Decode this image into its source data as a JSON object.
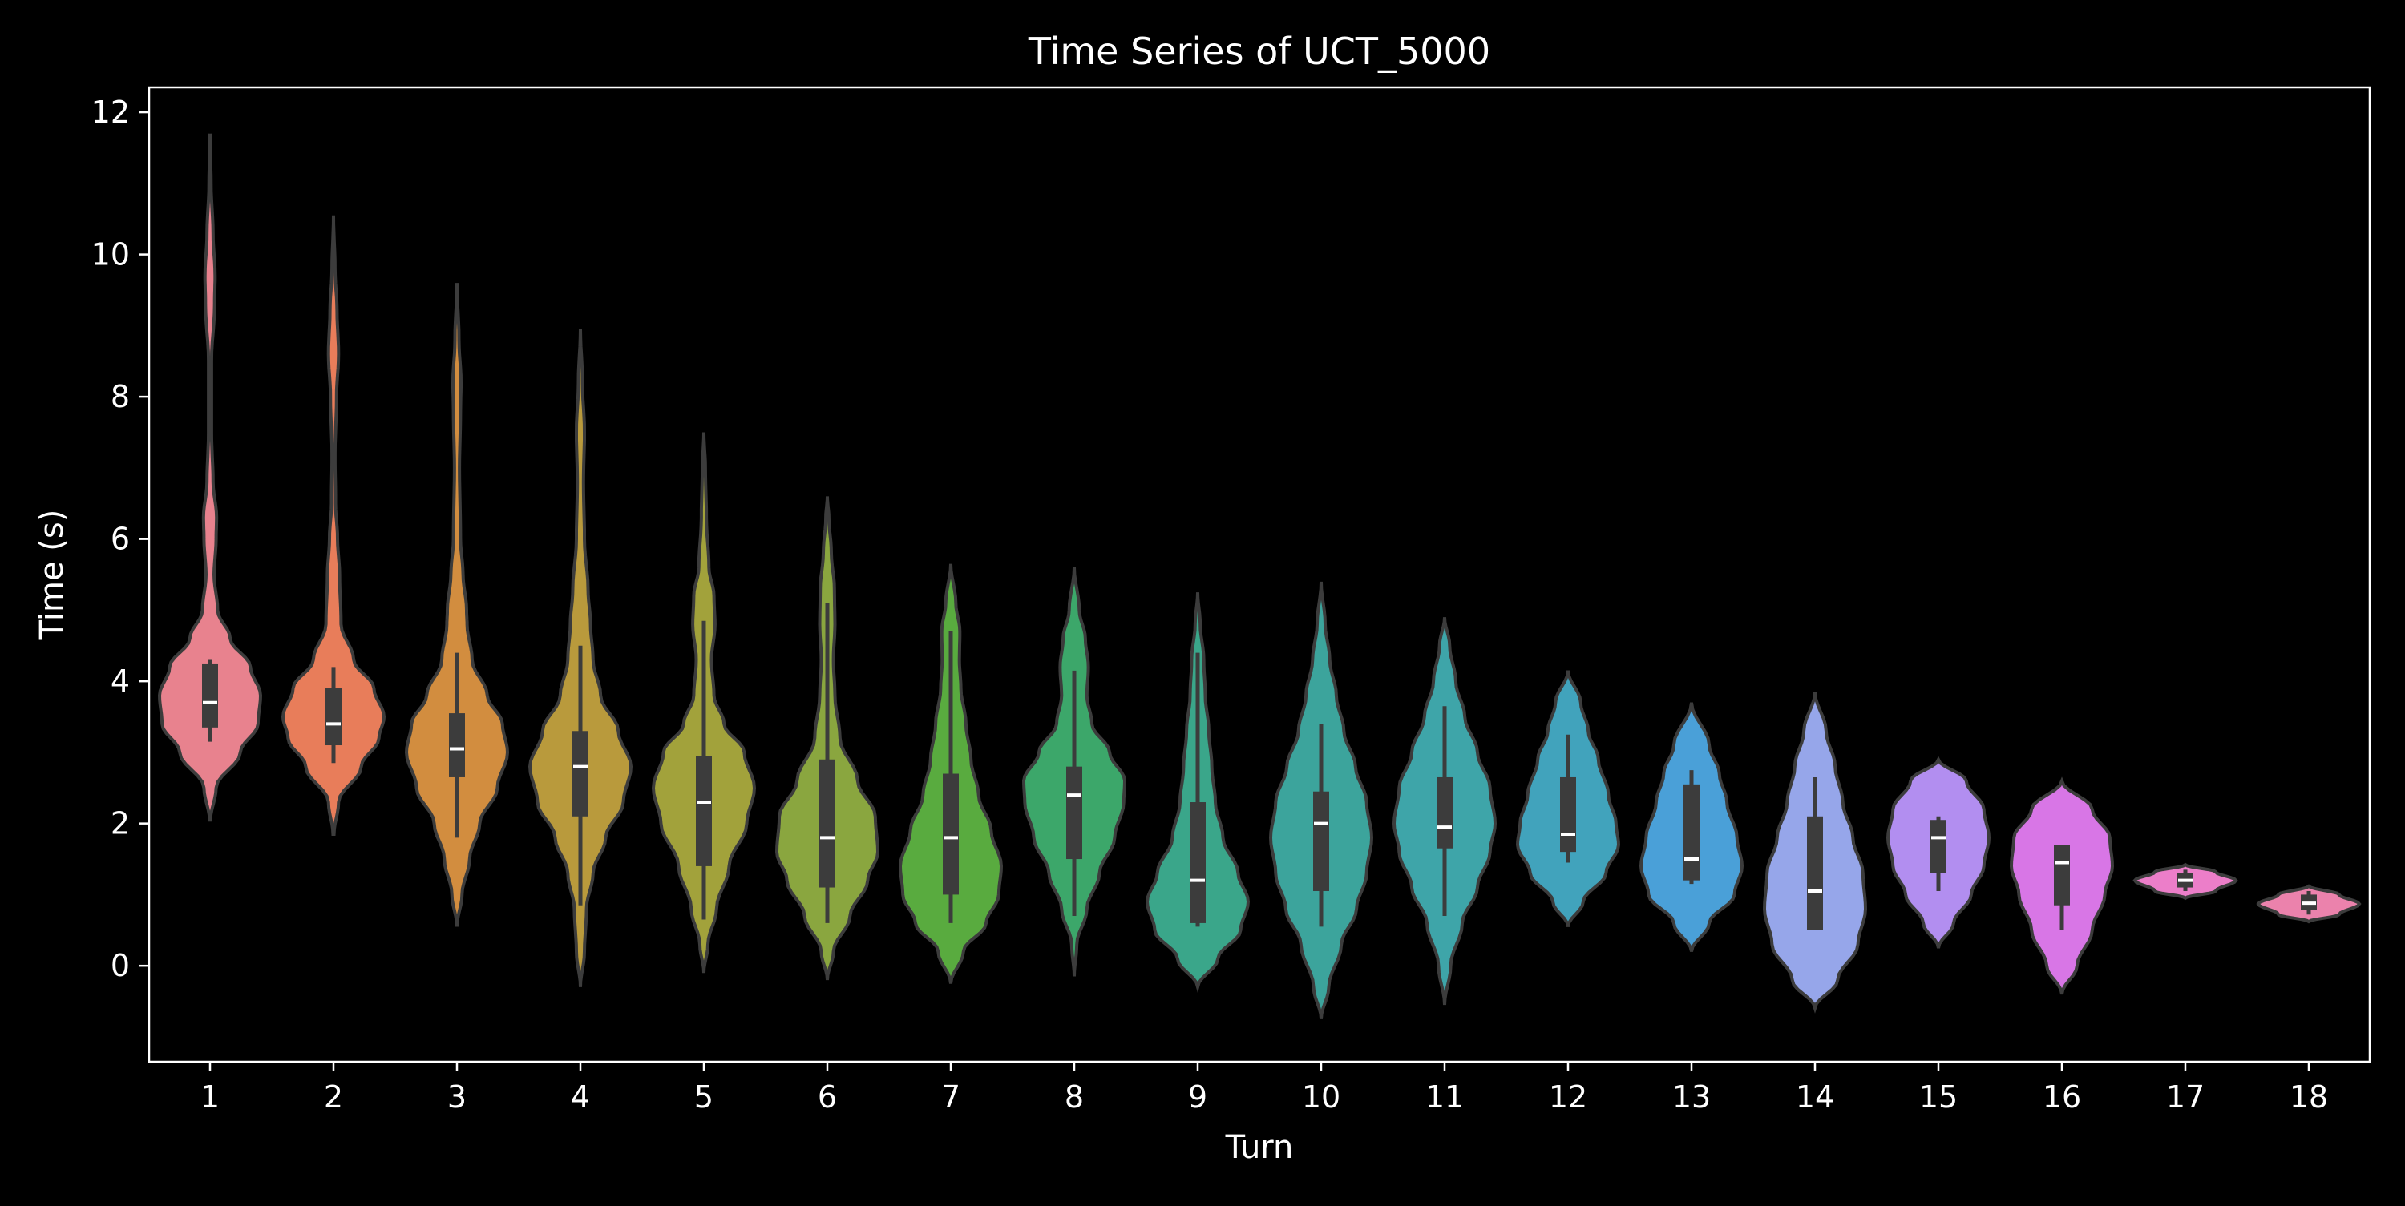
{
  "chart_data": {
    "type": "violin",
    "title": "Time Series of UCT_5000",
    "xlabel": "Turn",
    "ylabel": "Time (s)",
    "ylim": [
      -1.35,
      12.35
    ],
    "yticks": [
      0,
      2,
      4,
      6,
      8,
      10,
      12
    ],
    "grid": false,
    "legend": "none",
    "categories": [
      "1",
      "2",
      "3",
      "4",
      "5",
      "6",
      "7",
      "8",
      "9",
      "10",
      "11",
      "12",
      "13",
      "14",
      "15",
      "16",
      "17",
      "18"
    ],
    "colors": [
      "#e8828e",
      "#e87d5a",
      "#d28d3f",
      "#b99a3c",
      "#a2a23b",
      "#8aa63f",
      "#59ab3f",
      "#3ca76a",
      "#3aa68a",
      "#3ca49c",
      "#3ea5a9",
      "#41a3bc",
      "#4aa0d8",
      "#96a6ea",
      "#b28ef0",
      "#d876e6",
      "#ec7ec9",
      "#eb82ac"
    ],
    "violins": [
      {
        "min": 2.05,
        "max": 11.7,
        "q1": 3.35,
        "median": 3.7,
        "q3": 4.25,
        "wlo": 3.15,
        "whi": 4.3,
        "profile": [
          [
            2.05,
            0.01
          ],
          [
            2.5,
            0.12
          ],
          [
            3.0,
            0.6
          ],
          [
            3.4,
            0.95
          ],
          [
            3.8,
            1.0
          ],
          [
            4.2,
            0.8
          ],
          [
            4.6,
            0.4
          ],
          [
            5.0,
            0.15
          ],
          [
            5.5,
            0.08
          ],
          [
            6.0,
            0.12
          ],
          [
            6.3,
            0.13
          ],
          [
            6.8,
            0.06
          ],
          [
            7.5,
            0.03
          ],
          [
            8.5,
            0.03
          ],
          [
            9.3,
            0.09
          ],
          [
            9.7,
            0.1
          ],
          [
            10.3,
            0.06
          ],
          [
            11.0,
            0.02
          ],
          [
            11.7,
            0.0
          ]
        ]
      },
      {
        "min": 1.85,
        "max": 10.55,
        "q1": 3.1,
        "median": 3.4,
        "q3": 3.9,
        "wlo": 2.85,
        "whi": 4.2,
        "profile": [
          [
            1.85,
            0.01
          ],
          [
            2.3,
            0.1
          ],
          [
            2.8,
            0.55
          ],
          [
            3.2,
            0.9
          ],
          [
            3.5,
            1.0
          ],
          [
            3.9,
            0.8
          ],
          [
            4.3,
            0.4
          ],
          [
            4.8,
            0.15
          ],
          [
            5.5,
            0.12
          ],
          [
            6.0,
            0.08
          ],
          [
            6.5,
            0.04
          ],
          [
            7.2,
            0.03
          ],
          [
            8.0,
            0.06
          ],
          [
            8.6,
            0.1
          ],
          [
            9.2,
            0.07
          ],
          [
            9.8,
            0.03
          ],
          [
            10.55,
            0.0
          ]
        ]
      },
      {
        "min": 0.55,
        "max": 9.6,
        "q1": 2.65,
        "median": 3.05,
        "q3": 3.55,
        "wlo": 1.8,
        "whi": 4.4,
        "profile": [
          [
            0.55,
            0.0
          ],
          [
            1.0,
            0.1
          ],
          [
            1.5,
            0.25
          ],
          [
            2.0,
            0.45
          ],
          [
            2.5,
            0.8
          ],
          [
            3.0,
            1.0
          ],
          [
            3.4,
            0.9
          ],
          [
            3.8,
            0.6
          ],
          [
            4.3,
            0.3
          ],
          [
            4.8,
            0.2
          ],
          [
            5.0,
            0.19
          ],
          [
            5.5,
            0.12
          ],
          [
            6.0,
            0.07
          ],
          [
            7.0,
            0.05
          ],
          [
            7.8,
            0.07
          ],
          [
            8.2,
            0.08
          ],
          [
            8.8,
            0.04
          ],
          [
            9.6,
            0.0
          ]
        ]
      },
      {
        "min": -0.3,
        "max": 8.95,
        "q1": 2.1,
        "median": 2.8,
        "q3": 3.3,
        "wlo": 0.85,
        "whi": 4.5,
        "profile": [
          [
            -0.3,
            0.0
          ],
          [
            0.2,
            0.08
          ],
          [
            0.8,
            0.12
          ],
          [
            1.3,
            0.25
          ],
          [
            1.8,
            0.5
          ],
          [
            2.3,
            0.85
          ],
          [
            2.8,
            1.0
          ],
          [
            3.3,
            0.75
          ],
          [
            3.8,
            0.4
          ],
          [
            4.3,
            0.25
          ],
          [
            4.8,
            0.2
          ],
          [
            5.3,
            0.15
          ],
          [
            6.0,
            0.08
          ],
          [
            6.8,
            0.06
          ],
          [
            7.5,
            0.08
          ],
          [
            8.2,
            0.04
          ],
          [
            8.95,
            0.0
          ]
        ]
      },
      {
        "min": -0.1,
        "max": 7.5,
        "q1": 1.4,
        "median": 2.3,
        "q3": 2.95,
        "wlo": 0.65,
        "whi": 4.85,
        "profile": [
          [
            -0.1,
            0.0
          ],
          [
            0.3,
            0.08
          ],
          [
            0.8,
            0.25
          ],
          [
            1.4,
            0.5
          ],
          [
            2.0,
            0.85
          ],
          [
            2.5,
            1.0
          ],
          [
            3.0,
            0.8
          ],
          [
            3.4,
            0.4
          ],
          [
            3.8,
            0.2
          ],
          [
            4.3,
            0.15
          ],
          [
            4.8,
            0.22
          ],
          [
            5.2,
            0.2
          ],
          [
            5.6,
            0.1
          ],
          [
            6.3,
            0.05
          ],
          [
            7.0,
            0.03
          ],
          [
            7.5,
            0.0
          ]
        ]
      },
      {
        "min": -0.2,
        "max": 6.6,
        "q1": 1.1,
        "median": 1.8,
        "q3": 2.9,
        "wlo": 0.6,
        "whi": 5.1,
        "profile": [
          [
            -0.2,
            0.0
          ],
          [
            0.2,
            0.12
          ],
          [
            0.7,
            0.45
          ],
          [
            1.2,
            0.8
          ],
          [
            1.6,
            1.0
          ],
          [
            2.1,
            0.95
          ],
          [
            2.6,
            0.6
          ],
          [
            3.2,
            0.25
          ],
          [
            3.8,
            0.15
          ],
          [
            4.3,
            0.12
          ],
          [
            4.8,
            0.15
          ],
          [
            5.3,
            0.14
          ],
          [
            5.8,
            0.08
          ],
          [
            6.3,
            0.03
          ],
          [
            6.6,
            0.0
          ]
        ]
      },
      {
        "min": -0.25,
        "max": 5.65,
        "q1": 1.0,
        "median": 1.8,
        "q3": 2.7,
        "wlo": 0.6,
        "whi": 4.7,
        "profile": [
          [
            -0.25,
            0.0
          ],
          [
            0.2,
            0.25
          ],
          [
            0.6,
            0.7
          ],
          [
            1.0,
            0.95
          ],
          [
            1.4,
            1.0
          ],
          [
            1.9,
            0.8
          ],
          [
            2.4,
            0.55
          ],
          [
            2.9,
            0.4
          ],
          [
            3.4,
            0.3
          ],
          [
            3.9,
            0.2
          ],
          [
            4.3,
            0.17
          ],
          [
            4.7,
            0.18
          ],
          [
            5.1,
            0.1
          ],
          [
            5.65,
            0.0
          ]
        ]
      },
      {
        "min": -0.15,
        "max": 5.6,
        "q1": 1.5,
        "median": 2.4,
        "q3": 2.8,
        "wlo": 0.7,
        "whi": 4.15,
        "profile": [
          [
            -0.15,
            0.0
          ],
          [
            0.3,
            0.05
          ],
          [
            0.8,
            0.25
          ],
          [
            1.3,
            0.5
          ],
          [
            1.8,
            0.8
          ],
          [
            2.3,
            0.98
          ],
          [
            2.6,
            1.0
          ],
          [
            3.0,
            0.7
          ],
          [
            3.4,
            0.35
          ],
          [
            3.8,
            0.25
          ],
          [
            4.2,
            0.28
          ],
          [
            4.6,
            0.22
          ],
          [
            5.0,
            0.1
          ],
          [
            5.6,
            0.0
          ]
        ]
      },
      {
        "min": -0.3,
        "max": 5.25,
        "q1": 0.6,
        "median": 1.2,
        "q3": 2.3,
        "wlo": 0.55,
        "whi": 4.4,
        "profile": [
          [
            -0.3,
            0.0
          ],
          [
            0.1,
            0.4
          ],
          [
            0.5,
            0.85
          ],
          [
            0.9,
            1.0
          ],
          [
            1.3,
            0.8
          ],
          [
            1.8,
            0.5
          ],
          [
            2.3,
            0.35
          ],
          [
            2.8,
            0.28
          ],
          [
            3.3,
            0.22
          ],
          [
            3.8,
            0.15
          ],
          [
            4.3,
            0.12
          ],
          [
            4.8,
            0.05
          ],
          [
            5.25,
            0.0
          ]
        ]
      },
      {
        "min": -0.75,
        "max": 5.4,
        "q1": 1.05,
        "median": 2.0,
        "q3": 2.45,
        "wlo": 0.55,
        "whi": 3.4,
        "profile": [
          [
            -0.75,
            0.0
          ],
          [
            -0.3,
            0.15
          ],
          [
            0.3,
            0.4
          ],
          [
            0.8,
            0.7
          ],
          [
            1.3,
            0.9
          ],
          [
            1.8,
            1.0
          ],
          [
            2.3,
            0.9
          ],
          [
            2.8,
            0.68
          ],
          [
            3.3,
            0.45
          ],
          [
            3.8,
            0.3
          ],
          [
            4.3,
            0.17
          ],
          [
            4.8,
            0.08
          ],
          [
            5.4,
            0.0
          ]
        ]
      },
      {
        "min": -0.55,
        "max": 4.9,
        "q1": 1.65,
        "median": 1.95,
        "q3": 2.65,
        "wlo": 0.7,
        "whi": 3.65,
        "profile": [
          [
            -0.55,
            0.0
          ],
          [
            0.0,
            0.12
          ],
          [
            0.6,
            0.35
          ],
          [
            1.1,
            0.65
          ],
          [
            1.6,
            0.9
          ],
          [
            2.0,
            1.0
          ],
          [
            2.5,
            0.9
          ],
          [
            3.0,
            0.65
          ],
          [
            3.5,
            0.4
          ],
          [
            4.0,
            0.22
          ],
          [
            4.5,
            0.1
          ],
          [
            4.9,
            0.0
          ]
        ]
      },
      {
        "min": 0.55,
        "max": 4.15,
        "q1": 1.6,
        "median": 1.85,
        "q3": 2.65,
        "wlo": 1.45,
        "whi": 3.25,
        "profile": [
          [
            0.55,
            0.0
          ],
          [
            0.9,
            0.3
          ],
          [
            1.3,
            0.75
          ],
          [
            1.7,
            1.0
          ],
          [
            2.0,
            0.95
          ],
          [
            2.4,
            0.8
          ],
          [
            2.9,
            0.6
          ],
          [
            3.3,
            0.4
          ],
          [
            3.7,
            0.25
          ],
          [
            4.15,
            0.0
          ]
        ]
      },
      {
        "min": 0.2,
        "max": 3.7,
        "q1": 1.2,
        "median": 1.5,
        "q3": 2.55,
        "wlo": 1.15,
        "whi": 2.75,
        "profile": [
          [
            0.2,
            0.0
          ],
          [
            0.6,
            0.35
          ],
          [
            1.0,
            0.85
          ],
          [
            1.4,
            1.0
          ],
          [
            1.8,
            0.9
          ],
          [
            2.3,
            0.7
          ],
          [
            2.7,
            0.55
          ],
          [
            3.1,
            0.35
          ],
          [
            3.7,
            0.0
          ]
        ]
      },
      {
        "min": -0.6,
        "max": 3.85,
        "q1": 0.5,
        "median": 1.05,
        "q3": 2.1,
        "wlo": 0.5,
        "whi": 2.65,
        "profile": [
          [
            -0.6,
            0.0
          ],
          [
            -0.2,
            0.45
          ],
          [
            0.3,
            0.85
          ],
          [
            0.8,
            1.0
          ],
          [
            1.3,
            0.95
          ],
          [
            1.8,
            0.75
          ],
          [
            2.3,
            0.55
          ],
          [
            2.8,
            0.4
          ],
          [
            3.3,
            0.22
          ],
          [
            3.85,
            0.0
          ]
        ]
      },
      {
        "min": 0.25,
        "max": 2.9,
        "q1": 1.3,
        "median": 1.8,
        "q3": 2.05,
        "wlo": 1.05,
        "whi": 2.1,
        "profile": [
          [
            0.25,
            0.0
          ],
          [
            0.6,
            0.3
          ],
          [
            1.0,
            0.65
          ],
          [
            1.4,
            0.9
          ],
          [
            1.8,
            1.0
          ],
          [
            2.2,
            0.9
          ],
          [
            2.6,
            0.55
          ],
          [
            2.9,
            0.0
          ]
        ]
      },
      {
        "min": -0.4,
        "max": 2.6,
        "q1": 0.85,
        "median": 1.45,
        "q3": 1.7,
        "wlo": 0.5,
        "whi": 1.65,
        "profile": [
          [
            -0.4,
            0.0
          ],
          [
            0.0,
            0.3
          ],
          [
            0.5,
            0.6
          ],
          [
            1.0,
            0.85
          ],
          [
            1.4,
            1.0
          ],
          [
            1.8,
            0.95
          ],
          [
            2.2,
            0.6
          ],
          [
            2.6,
            0.0
          ]
        ]
      },
      {
        "min": 0.95,
        "max": 1.42,
        "q1": 1.1,
        "median": 1.2,
        "q3": 1.3,
        "wlo": 1.05,
        "whi": 1.35,
        "profile": [
          [
            0.95,
            0.0
          ],
          [
            1.05,
            0.6
          ],
          [
            1.2,
            1.0
          ],
          [
            1.32,
            0.6
          ],
          [
            1.42,
            0.0
          ]
        ]
      },
      {
        "min": 0.62,
        "max": 1.12,
        "q1": 0.78,
        "median": 0.88,
        "q3": 1.0,
        "wlo": 0.72,
        "whi": 1.05,
        "profile": [
          [
            0.62,
            0.0
          ],
          [
            0.72,
            0.6
          ],
          [
            0.87,
            1.0
          ],
          [
            1.0,
            0.6
          ],
          [
            1.12,
            0.0
          ]
        ]
      }
    ]
  }
}
